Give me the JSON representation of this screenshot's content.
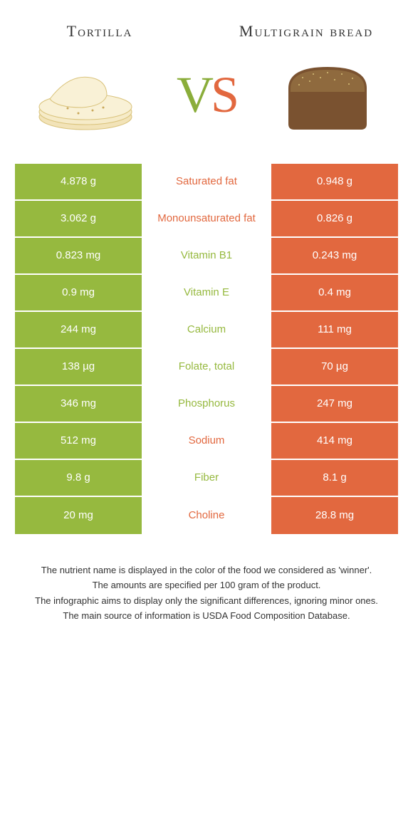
{
  "colors": {
    "green": "#96b93f",
    "orange": "#e2683f",
    "background": "#ffffff"
  },
  "header": {
    "left_title": "Tortilla",
    "right_title": "Multigrain bread",
    "vs_v": "V",
    "vs_s": "S"
  },
  "rows": [
    {
      "left": "4.878 g",
      "label": "Saturated fat",
      "winner": "orange",
      "right": "0.948 g"
    },
    {
      "left": "3.062 g",
      "label": "Monounsaturated fat",
      "winner": "orange",
      "right": "0.826 g"
    },
    {
      "left": "0.823 mg",
      "label": "Vitamin B1",
      "winner": "green",
      "right": "0.243 mg"
    },
    {
      "left": "0.9 mg",
      "label": "Vitamin E",
      "winner": "green",
      "right": "0.4 mg"
    },
    {
      "left": "244 mg",
      "label": "Calcium",
      "winner": "green",
      "right": "111 mg"
    },
    {
      "left": "138 µg",
      "label": "Folate, total",
      "winner": "green",
      "right": "70 µg"
    },
    {
      "left": "346 mg",
      "label": "Phosphorus",
      "winner": "green",
      "right": "247 mg"
    },
    {
      "left": "512 mg",
      "label": "Sodium",
      "winner": "orange",
      "right": "414 mg"
    },
    {
      "left": "9.8 g",
      "label": "Fiber",
      "winner": "green",
      "right": "8.1 g"
    },
    {
      "left": "20 mg",
      "label": "Choline",
      "winner": "orange",
      "right": "28.8 mg"
    }
  ],
  "footnotes": [
    "The nutrient name is displayed in the color of the food we considered as 'winner'.",
    "The amounts are specified per 100 gram of the product.",
    "The infographic aims to display only the significant differences, ignoring minor ones.",
    "The main source of information is USDA Food Composition Database."
  ]
}
